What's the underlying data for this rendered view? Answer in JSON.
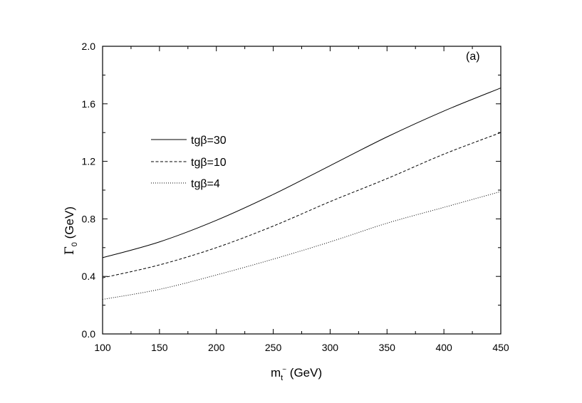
{
  "chart_data": {
    "type": "line",
    "panel_label": "(a)",
    "xlabel": {
      "main": "m",
      "sub": "t",
      "sup": "~",
      "unit": " (GeV)"
    },
    "ylabel": {
      "main": "Γ",
      "sub": "0",
      "unit": " (GeV)"
    },
    "xlim": [
      100,
      450
    ],
    "ylim": [
      0.0,
      2.0
    ],
    "xticks": [
      100,
      150,
      200,
      250,
      300,
      350,
      400,
      450
    ],
    "yticks": [
      "0.0",
      "0.4",
      "0.8",
      "1.2",
      "1.6",
      "2.0"
    ],
    "grid": false,
    "legend_position": "upper-left",
    "x": [
      100,
      150,
      200,
      250,
      300,
      350,
      400,
      450
    ],
    "series": [
      {
        "name": "tgβ=30",
        "style": "solid",
        "values": [
          0.53,
          0.64,
          0.79,
          0.97,
          1.17,
          1.37,
          1.55,
          1.71
        ]
      },
      {
        "name": "tgβ=10",
        "style": "dashed",
        "values": [
          0.39,
          0.48,
          0.6,
          0.75,
          0.92,
          1.08,
          1.25,
          1.4
        ]
      },
      {
        "name": "tgβ=4",
        "style": "dotted",
        "values": [
          0.24,
          0.31,
          0.41,
          0.52,
          0.64,
          0.77,
          0.88,
          0.99
        ]
      }
    ]
  }
}
